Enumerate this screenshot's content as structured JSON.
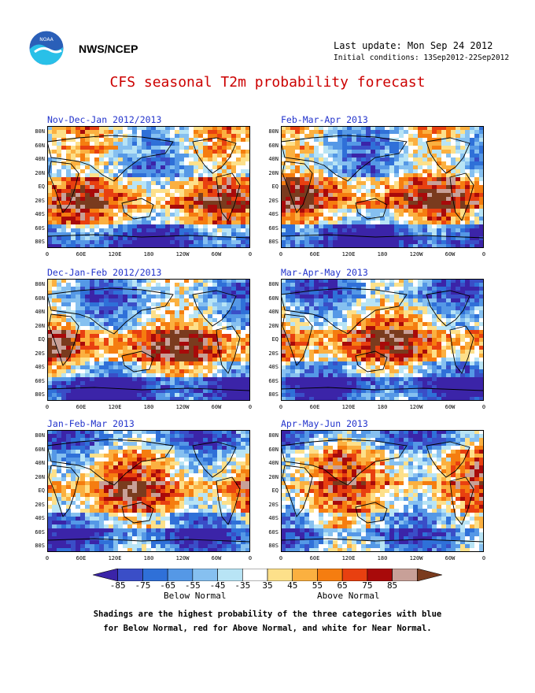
{
  "header": {
    "org": "NWS/NCEP",
    "last_update": "Last update: Mon Sep 24 2012",
    "initial_conditions": "Initial conditions: 13Sep2012-22Sep2012",
    "title": "CFS seasonal T2m probability forecast"
  },
  "panels": [
    {
      "title": "Nov-Dec-Jan 2012/2013"
    },
    {
      "title": "Feb-Mar-Apr 2013"
    },
    {
      "title": "Dec-Jan-Feb 2012/2013"
    },
    {
      "title": "Mar-Apr-May 2013"
    },
    {
      "title": "Jan-Feb-Mar 2013"
    },
    {
      "title": "Apr-May-Jun 2013"
    }
  ],
  "lat_labels": [
    "80N",
    "60N",
    "40N",
    "20N",
    "EQ",
    "20S",
    "40S",
    "60S",
    "80S"
  ],
  "lon_labels": [
    "0",
    "60E",
    "120E",
    "180",
    "120W",
    "60W",
    "0"
  ],
  "colorbar": {
    "labels": [
      "-85",
      "-75",
      "-65",
      "-55",
      "-45",
      "-35",
      "35",
      "45",
      "55",
      "65",
      "75",
      "85"
    ],
    "colors": [
      "#3b24a8",
      "#3a4ec7",
      "#2f70d8",
      "#5598e6",
      "#86c0f0",
      "#b8e4f5",
      "#ffffff",
      "#fde08a",
      "#fbb040",
      "#f57d10",
      "#e84010",
      "#a80a0a",
      "#c8a098",
      "#7a3b1e"
    ],
    "below_label": "Below Normal",
    "above_label": "Above Normal"
  },
  "caption": {
    "line1": "Shadings are the highest probability of the three categories with blue",
    "line2": "for Below Normal, red for Above Normal, and white for Near Normal."
  }
}
